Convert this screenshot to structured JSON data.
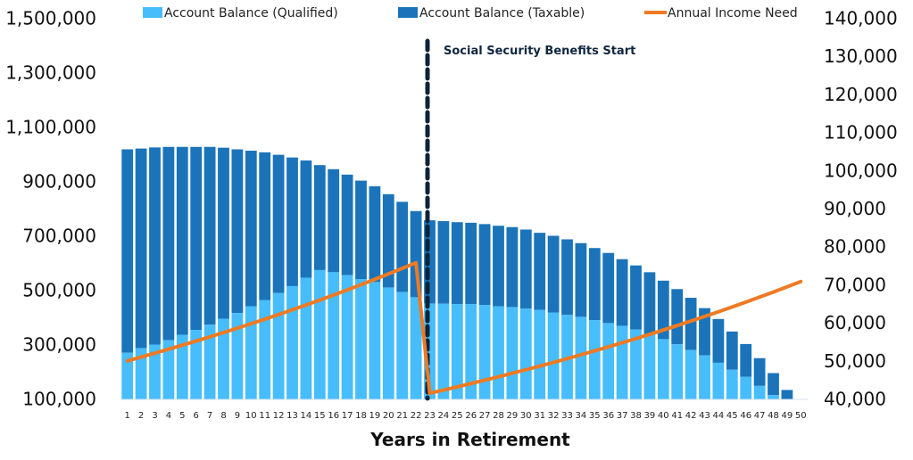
{
  "chart_data": {
    "type": "bar",
    "title": "",
    "xlabel": "Years in Retirement",
    "ylabel_left": "",
    "ylabel_right": "",
    "x": [
      1,
      2,
      3,
      4,
      5,
      6,
      7,
      8,
      9,
      10,
      11,
      12,
      13,
      14,
      15,
      16,
      17,
      18,
      19,
      20,
      21,
      22,
      23,
      24,
      25,
      26,
      27,
      28,
      29,
      30,
      31,
      32,
      33,
      34,
      35,
      36,
      37,
      38,
      39,
      40,
      41,
      42,
      43,
      44,
      45,
      46,
      47,
      48,
      49,
      50
    ],
    "left_axis": {
      "range": [
        100000,
        1500000
      ],
      "ticks": [
        "100,000",
        "300,000",
        "500,000",
        "700,000",
        "900,000",
        "1,100,000",
        "1,300,000",
        "1,500,000"
      ],
      "tick_values": [
        100000,
        300000,
        500000,
        700000,
        900000,
        1100000,
        1300000,
        1500000
      ]
    },
    "right_axis": {
      "range": [
        40000,
        140000
      ],
      "ticks": [
        "40,000",
        "50,000",
        "60,000",
        "70,000",
        "80,000",
        "90,000",
        "100,000",
        "110,000",
        "120,000",
        "130,000",
        "140,000"
      ],
      "tick_values": [
        40000,
        50000,
        60000,
        70000,
        80000,
        90000,
        100000,
        110000,
        120000,
        130000,
        140000
      ]
    },
    "series": [
      {
        "name": "Account Balance (Qualified)",
        "kind": "stacked-bar",
        "axis": "left",
        "color": "#47bdfb",
        "values": [
          270000,
          287000,
          300000,
          316000,
          336000,
          354000,
          373000,
          395000,
          416000,
          441000,
          463000,
          490000,
          515000,
          546000,
          574000,
          566000,
          555000,
          541000,
          530000,
          510000,
          493000,
          474000,
          451000,
          450000,
          449000,
          449000,
          445000,
          441000,
          438000,
          432000,
          427000,
          418000,
          409000,
          402000,
          390000,
          379000,
          369000,
          355000,
          337000,
          320000,
          301000,
          280000,
          260000,
          233000,
          208000,
          181000,
          148000,
          114000,
          100000,
          100000
        ]
      },
      {
        "name": "Account Balance (Taxable)",
        "kind": "stacked-bar-total",
        "axis": "left",
        "color": "#1b74b9",
        "values": [
          1018000,
          1021000,
          1025000,
          1027000,
          1027000,
          1027000,
          1027000,
          1024000,
          1018000,
          1013000,
          1007000,
          998000,
          988000,
          977000,
          960000,
          945000,
          925000,
          903000,
          882000,
          853000,
          825000,
          791000,
          757000,
          754000,
          750000,
          748000,
          743000,
          737000,
          732000,
          723000,
          711000,
          700000,
          687000,
          673000,
          655000,
          637000,
          614000,
          591000,
          566000,
          535000,
          504000,
          472000,
          434000,
          394000,
          348000,
          302000,
          250000,
          195000,
          133000,
          100000
        ]
      },
      {
        "name": "Annual Income Need",
        "kind": "line",
        "axis": "right",
        "color": "#ee7a23",
        "values": [
          50000,
          51000,
          52020,
          53060,
          54122,
          55204,
          56308,
          57434,
          58583,
          59755,
          60950,
          62169,
          63412,
          64680,
          65974,
          67293,
          68639,
          70012,
          71412,
          72841,
          74297,
          75783,
          41500,
          42330,
          43177,
          44040,
          44921,
          45819,
          46736,
          47670,
          48624,
          49596,
          50588,
          51600,
          52632,
          53685,
          54758,
          55853,
          56970,
          58110,
          59272,
          60457,
          61667,
          62900,
          64158,
          65441,
          66750,
          68085,
          69447,
          70836
        ]
      }
    ],
    "annotation": {
      "label": "Social Security Benefits Start",
      "at_x": 23,
      "line_color": "#0d2338"
    },
    "legend": {
      "placement": "top",
      "entries": [
        "Account Balance (Qualified)",
        "Account Balance (Taxable)",
        "Annual Income Need"
      ]
    },
    "grid": false
  }
}
